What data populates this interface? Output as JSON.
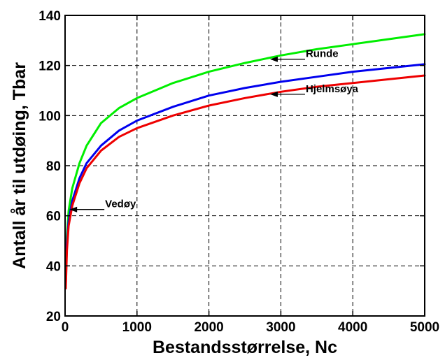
{
  "chart_data": {
    "type": "line",
    "title": "",
    "xlabel": "Bestandsstørrelse, Nc",
    "ylabel": "Antall år til utdøing, Tbar",
    "xlim": [
      0,
      5000
    ],
    "ylim": [
      20,
      140
    ],
    "xticks": [
      0,
      1000,
      2000,
      3000,
      4000,
      5000
    ],
    "yticks": [
      20,
      40,
      60,
      80,
      100,
      120,
      140
    ],
    "grid": true,
    "grid_style": "dashed",
    "legend": "none",
    "series": [
      {
        "name": "Runde",
        "color": "#00ee00",
        "x": [
          10,
          25,
          50,
          100,
          200,
          300,
          500,
          750,
          1000,
          1500,
          2000,
          2500,
          3000,
          3500,
          4000,
          4500,
          5000
        ],
        "y": [
          36,
          52,
          62,
          71,
          81,
          88,
          97,
          103,
          107,
          113,
          117.5,
          121,
          124,
          126.5,
          128.5,
          130.5,
          132.5
        ]
      },
      {
        "name": "Vedøy",
        "color": "#0000ee",
        "x": [
          10,
          25,
          50,
          100,
          200,
          300,
          500,
          750,
          1000,
          1500,
          2000,
          2500,
          3000,
          3500,
          4000,
          4500,
          5000
        ],
        "y": [
          33,
          49,
          58,
          66,
          75,
          81,
          88,
          94,
          98,
          103.5,
          108,
          111,
          113.5,
          115.5,
          117.5,
          119,
          120.5
        ]
      },
      {
        "name": "Hjelmsøya",
        "color": "#ee0000",
        "x": [
          10,
          25,
          50,
          100,
          200,
          300,
          500,
          750,
          1000,
          1500,
          2000,
          2500,
          3000,
          3500,
          4000,
          4500,
          5000
        ],
        "y": [
          31,
          46,
          56,
          64,
          73,
          79,
          86,
          91.5,
          95,
          100,
          104,
          107,
          109.5,
          111.5,
          113,
          114.5,
          116
        ]
      }
    ],
    "annotations": [
      {
        "text": "Runde",
        "x": 2850,
        "y": 122.5
      },
      {
        "text": "Hjelmsøya",
        "x": 2850,
        "y": 108.5
      },
      {
        "text": "Vedøy",
        "x": 60,
        "y": 62.5
      }
    ]
  }
}
